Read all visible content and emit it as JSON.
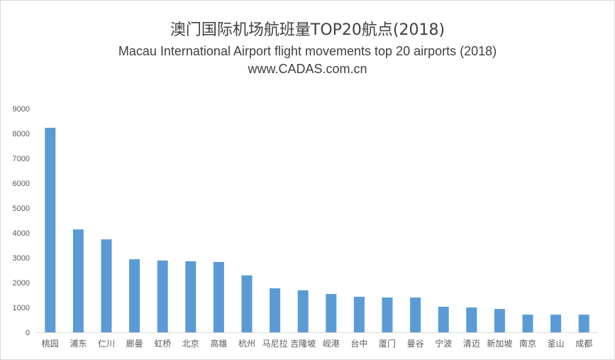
{
  "chart_data": {
    "type": "bar",
    "title": "澳门国际机场航班量TOP20航点(2018)",
    "subtitle": "Macau International Airport  flight movements top 20 airports (2018)",
    "source": "www.CADAS.com.cn",
    "categories": [
      "桃园",
      "浦东",
      "仁川",
      "廊曼",
      "虹桥",
      "北京",
      "高雄",
      "杭州",
      "马尼拉",
      "吉隆坡",
      "岘港",
      "台中",
      "厦门",
      "曼谷",
      "宁波",
      "清迈",
      "新加坡",
      "南京",
      "釜山",
      "成都"
    ],
    "values": [
      8230,
      4140,
      3740,
      2940,
      2890,
      2860,
      2830,
      2290,
      1770,
      1690,
      1540,
      1430,
      1400,
      1400,
      1030,
      1000,
      940,
      710,
      710,
      710
    ],
    "ylim": [
      0,
      9000
    ],
    "yticks": [
      0,
      1000,
      2000,
      3000,
      4000,
      5000,
      6000,
      7000,
      8000,
      9000
    ],
    "xlabel": "",
    "ylabel": "",
    "grid": false,
    "legend": "none",
    "bar_color": "#5b9bd5"
  }
}
